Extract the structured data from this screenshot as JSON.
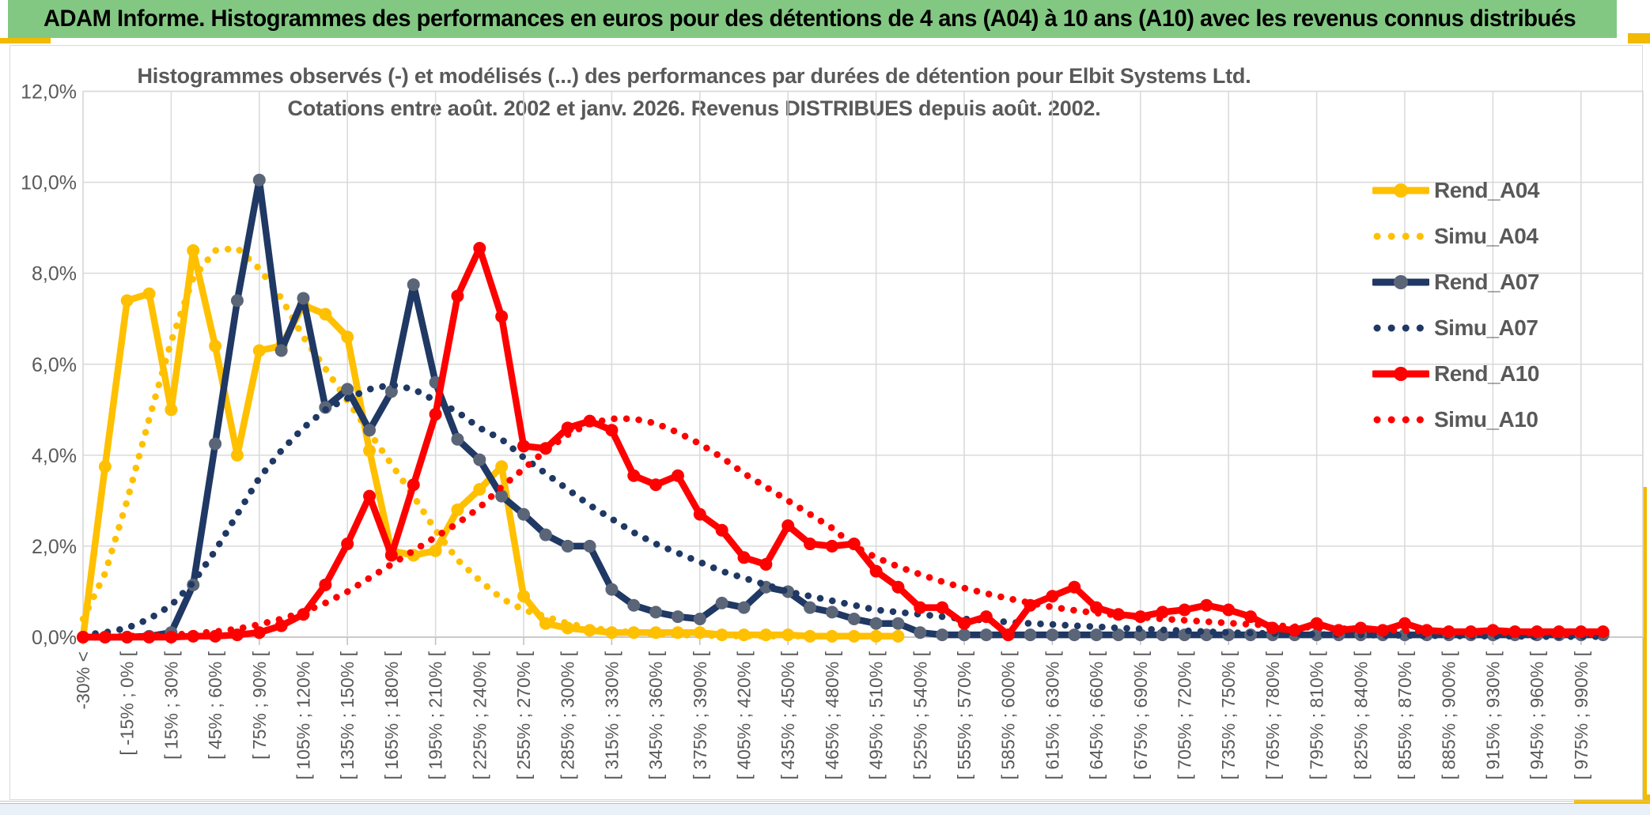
{
  "page": {
    "header_title": "ADAM Informe. Histogrammes des performances en euros pour des détentions de 4 ans (A04) à 10 ans (A10) avec les revenus connus distribués",
    "header_bg": "#82C882",
    "accent_gold": "#F2BA00"
  },
  "chart_data": {
    "type": "line",
    "title_line1": "Histogrammes observés (-) et modélisés (...) des performances par durées de détention pour Elbit Systems Ltd.",
    "title_line2": "Cotations entre août. 2002 et janv. 2026. Revenus DISTRIBUES depuis août. 2002.",
    "ylim": [
      0,
      12
    ],
    "y_ticks": [
      "0,0%",
      "2,0%",
      "4,0%",
      "6,0%",
      "8,0%",
      "10,0%",
      "12,0%"
    ],
    "grid": true,
    "legend_position": "right",
    "colors": {
      "gold": "#FFC000",
      "navy": "#1F3864",
      "navy_marker": "#5B6578",
      "red": "#FF0000",
      "gridline": "#D9D9D9",
      "axis_text": "#595959"
    },
    "x_label_every_n_bins": 2,
    "x_labels": [
      "-30% <",
      "[ -15% ; 0% [",
      "[ 15% ; 30% [",
      "[ 45% ; 60% [",
      "[ 75% ; 90% [",
      "[ 105% ; 120% [",
      "[ 135% ; 150% [",
      "[ 165% ; 180% [",
      "[ 195% ; 210% [",
      "[ 225% ; 240% [",
      "[ 255% ; 270% [",
      "[ 285% ; 300% [",
      "[ 315% ; 330% [",
      "[ 345% ; 360% [",
      "[ 375% ; 390% [",
      "[ 405% ; 420% [",
      "[ 435% ; 450% [",
      "[ 465% ; 480% [",
      "[ 495% ; 510% [",
      "[ 525% ; 540% [",
      "[ 555% ; 570% [",
      "[ 585% ; 600% [",
      "[ 615% ; 630% [",
      "[ 645% ; 660% [",
      "[ 675% ; 690% [",
      "[ 705% ; 720% [",
      "[ 735% ; 750% [",
      "[ 765% ; 780% [",
      "[ 795% ; 810% [",
      "[ 825% ; 840% [",
      "[ 855% ; 870% [",
      "[ 885% ; 900% [",
      "[ 915% ; 930% [",
      "[ 945% ; 960% [",
      "[ 975% ; 990% ["
    ],
    "series": [
      {
        "name": "Rend_A04",
        "style": "solid",
        "color": "#FFC000",
        "marker_color": "#FFC000",
        "values": [
          0,
          3.75,
          7.4,
          7.55,
          5.0,
          8.5,
          6.4,
          4.0,
          6.3,
          6.4,
          7.3,
          7.1,
          6.6,
          4.1,
          1.9,
          1.8,
          1.9,
          2.8,
          3.25,
          3.75,
          0.9,
          0.3,
          0.2,
          0.15,
          0.1,
          0.1,
          0.1,
          0.1,
          0.1,
          0.05,
          0.05,
          0.05,
          0.05,
          0.02,
          0.02,
          0.02,
          0.02,
          0.02,
          null,
          null,
          null,
          null,
          null,
          null,
          null,
          null,
          null,
          null,
          null,
          null,
          null,
          null,
          null,
          null,
          null,
          null,
          null,
          null,
          null,
          null,
          null,
          null,
          null,
          null,
          null,
          null,
          null,
          null,
          null,
          null
        ]
      },
      {
        "name": "Simu_A04",
        "style": "dotted",
        "color": "#FFC000",
        "values": [
          0.4,
          1.4,
          3.0,
          4.8,
          6.5,
          7.9,
          8.5,
          8.55,
          8.1,
          7.45,
          6.6,
          5.9,
          5.2,
          4.5,
          3.8,
          3.1,
          2.35,
          1.7,
          1.25,
          0.85,
          0.6,
          0.45,
          0.3,
          0.2,
          0.15,
          0.1,
          0.07,
          0.05,
          0.04,
          0.03,
          0.02,
          0.02,
          0.02,
          0.02,
          0.02,
          null,
          null,
          null,
          null,
          null,
          null,
          null,
          null,
          null,
          null,
          null,
          null,
          null,
          null,
          null,
          null,
          null,
          null,
          null,
          null,
          null,
          null,
          null,
          null,
          null,
          null,
          null,
          null,
          null,
          null,
          null,
          null,
          null,
          null,
          null
        ]
      },
      {
        "name": "Rend_A07",
        "style": "solid",
        "color": "#1F3864",
        "marker_color": "#5B6578",
        "values": [
          0,
          0,
          0,
          0.02,
          0.1,
          1.15,
          4.25,
          7.4,
          10.05,
          6.3,
          7.45,
          5.05,
          5.45,
          4.55,
          5.4,
          7.75,
          5.6,
          4.35,
          3.9,
          3.1,
          2.7,
          2.25,
          2.0,
          2.0,
          1.05,
          0.7,
          0.55,
          0.45,
          0.4,
          0.75,
          0.65,
          1.1,
          1.0,
          0.65,
          0.55,
          0.4,
          0.3,
          0.3,
          0.1,
          0.05,
          0.05,
          0.05,
          0.05,
          0.05,
          0.05,
          0.05,
          0.05,
          0.05,
          0.05,
          0.05,
          0.05,
          0.05,
          0.05,
          0.05,
          0.05,
          0.05,
          0.05,
          0.05,
          0.05,
          0.05,
          0.05,
          0.05,
          0.05,
          0.05,
          0.05,
          0.05,
          0.05,
          0.05,
          0.05,
          0.05
        ]
      },
      {
        "name": "Simu_A07",
        "style": "dotted",
        "color": "#1F3864",
        "values": [
          0.05,
          0.1,
          0.2,
          0.4,
          0.7,
          1.2,
          1.9,
          2.7,
          3.5,
          4.1,
          4.6,
          5.0,
          5.25,
          5.45,
          5.55,
          5.45,
          5.2,
          4.95,
          4.6,
          4.35,
          3.95,
          3.6,
          3.25,
          2.9,
          2.6,
          2.3,
          2.05,
          1.85,
          1.65,
          1.45,
          1.3,
          1.15,
          1.0,
          0.9,
          0.8,
          0.7,
          0.6,
          0.55,
          0.5,
          0.45,
          0.4,
          0.37,
          0.33,
          0.3,
          0.28,
          0.25,
          0.23,
          0.2,
          0.18,
          0.16,
          0.14,
          0.12,
          0.1,
          0.09,
          0.08,
          0.07,
          0.06,
          0.05,
          0.05,
          0.04,
          0.04,
          0.03,
          0.03,
          0.02,
          0.02,
          0.02,
          0.01,
          0.01,
          0.01,
          0.01
        ]
      },
      {
        "name": "Rend_A10",
        "style": "solid",
        "color": "#FF0000",
        "marker_color": "#FF0000",
        "values": [
          0,
          0,
          0,
          0,
          0,
          0.02,
          0.02,
          0.05,
          0.1,
          0.25,
          0.5,
          1.15,
          2.05,
          3.1,
          1.8,
          3.35,
          4.9,
          7.5,
          8.55,
          7.05,
          4.2,
          4.15,
          4.6,
          4.75,
          4.55,
          3.55,
          3.35,
          3.55,
          2.7,
          2.35,
          1.75,
          1.6,
          2.45,
          2.05,
          2.0,
          2.05,
          1.45,
          1.1,
          0.65,
          0.65,
          0.3,
          0.45,
          0.05,
          0.7,
          0.9,
          1.1,
          0.65,
          0.5,
          0.45,
          0.55,
          0.6,
          0.7,
          0.6,
          0.45,
          0.2,
          0.15,
          0.3,
          0.15,
          0.2,
          0.15,
          0.3,
          0.15,
          0.12,
          0.12,
          0.15,
          0.12,
          0.12,
          0.12,
          0.12,
          0.12
        ]
      },
      {
        "name": "Simu_A10",
        "style": "dotted",
        "color": "#FF0000",
        "values": [
          0,
          0,
          0.02,
          0.03,
          0.05,
          0.08,
          0.12,
          0.18,
          0.28,
          0.4,
          0.55,
          0.75,
          1.0,
          1.3,
          1.6,
          1.9,
          2.2,
          2.5,
          2.85,
          3.3,
          3.7,
          4.1,
          4.45,
          4.7,
          4.8,
          4.8,
          4.7,
          4.5,
          4.25,
          3.95,
          3.6,
          3.3,
          3.0,
          2.7,
          2.4,
          2.0,
          1.75,
          1.55,
          1.38,
          1.22,
          1.08,
          0.96,
          0.85,
          0.75,
          0.66,
          0.59,
          0.53,
          0.48,
          0.44,
          0.4,
          0.37,
          0.34,
          0.31,
          0.28,
          0.26,
          0.23,
          0.21,
          0.19,
          0.17,
          0.16,
          0.14,
          0.13,
          0.12,
          0.11,
          0.1,
          0.09,
          0.08,
          0.07,
          0.06,
          0.06
        ]
      }
    ]
  }
}
